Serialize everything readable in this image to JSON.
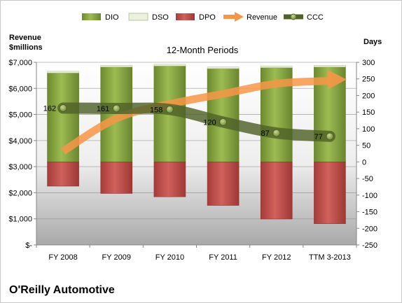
{
  "chart_data": {
    "type": "bar",
    "title": "12-Month Periods",
    "company": "O'Reilly Automotive",
    "left_axis_title": "Revenue\n$millions",
    "right_axis_title": "Days",
    "categories": [
      "FY 2008",
      "FY 2009",
      "FY 2010",
      "FY 2011",
      "FY 2012",
      "TTM 3-2013"
    ],
    "left_ticks": [
      "$-",
      "$1,000",
      "$2,000",
      "$3,000",
      "$4,000",
      "$5,000",
      "$6,000",
      "$7,000"
    ],
    "right_ticks": [
      "-250",
      "-200",
      "-150",
      "-100",
      "-50",
      "0",
      "50",
      "100",
      "150",
      "200",
      "250",
      "300"
    ],
    "ylim_left": [
      0,
      7000
    ],
    "ylim_right": [
      -250,
      300
    ],
    "legend_position": "top",
    "series": [
      {
        "name": "DIO",
        "axis": "right",
        "kind": "stacked-bar",
        "color": "#77933c",
        "values": [
          268,
          286,
          289,
          281,
          284,
          286
        ]
      },
      {
        "name": "DSO",
        "axis": "right",
        "kind": "stacked-bar",
        "color": "#ebf1de",
        "values": [
          5,
          5,
          5,
          5,
          5,
          5
        ]
      },
      {
        "name": "DPO",
        "axis": "right",
        "kind": "negative-bar",
        "color": "#c0504d",
        "values": [
          -73,
          -95,
          -105,
          -131,
          -172,
          -186
        ]
      },
      {
        "name": "Revenue",
        "axis": "left",
        "kind": "arrow-line",
        "color": "#f79646",
        "values": [
          3590,
          4850,
          5400,
          5790,
          6180,
          6290
        ]
      },
      {
        "name": "CCC",
        "axis": "right",
        "kind": "line",
        "color": "#4f6228",
        "values": [
          162,
          161,
          158,
          120,
          87,
          77
        ],
        "labels": [
          "162",
          "161",
          "158",
          "120",
          "87",
          "77"
        ]
      }
    ]
  }
}
